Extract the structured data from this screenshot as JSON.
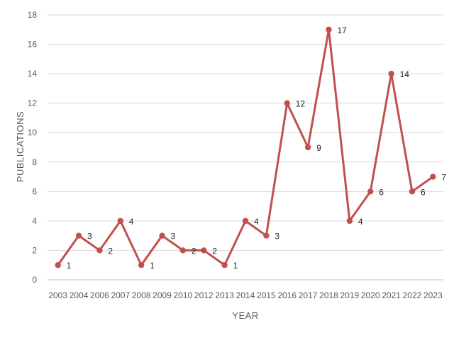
{
  "chart_data": {
    "type": "line",
    "title": "",
    "xlabel": "YEAR",
    "ylabel": "PUBLICATIONS",
    "categories": [
      "2003",
      "2004",
      "2006",
      "2007",
      "2008",
      "2009",
      "2010",
      "2012",
      "2013",
      "2014",
      "2015",
      "2016",
      "2017",
      "2018",
      "2019",
      "2020",
      "2021",
      "2022",
      "2023"
    ],
    "series": [
      {
        "values": [
          1,
          3,
          2,
          4,
          1,
          3,
          2,
          2,
          1,
          4,
          3,
          12,
          9,
          17,
          4,
          6,
          14,
          6,
          7
        ]
      }
    ],
    "ylim": [
      0,
      18
    ],
    "yticks": [
      0,
      2,
      4,
      6,
      8,
      10,
      12,
      14,
      16,
      18
    ],
    "grid": true,
    "legend": "none",
    "data_labels": true,
    "color": "#c0504d"
  }
}
